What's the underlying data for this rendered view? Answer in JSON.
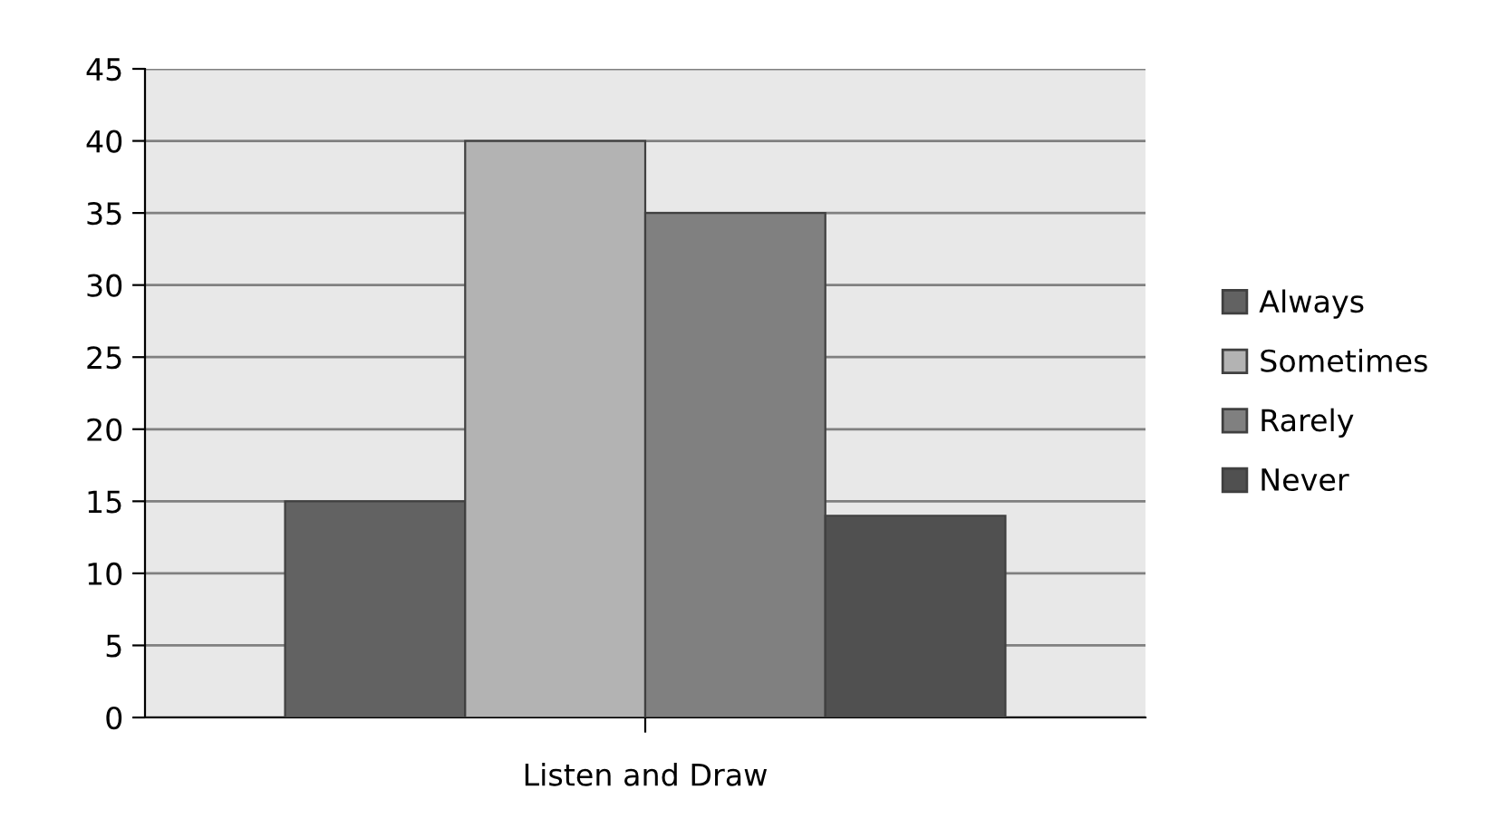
{
  "chart_data": {
    "type": "bar",
    "categories": [
      "Listen and Draw"
    ],
    "series": [
      {
        "name": "Always",
        "color": "#626262",
        "values": [
          15
        ]
      },
      {
        "name": "Sometimes",
        "color": "#b3b3b3",
        "values": [
          40
        ]
      },
      {
        "name": "Rarely",
        "color": "#808080",
        "values": [
          35
        ]
      },
      {
        "name": "Never",
        "color": "#505050",
        "values": [
          14
        ]
      }
    ],
    "ylim": [
      0,
      45
    ],
    "yticks": [
      0,
      5,
      10,
      15,
      20,
      25,
      30,
      35,
      40,
      45
    ],
    "grid": "y",
    "legend": "right"
  }
}
